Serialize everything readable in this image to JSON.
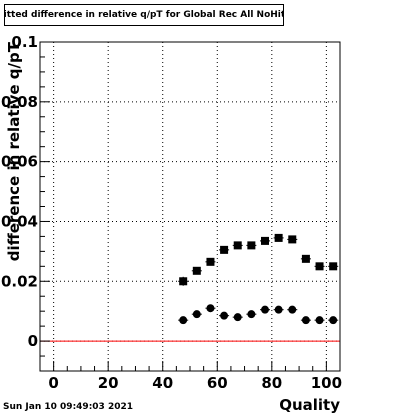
{
  "title": "Fitted difference in relative q/pT  for Global Rec All NoHits",
  "footer": "Sun Jan 10 09:49:03 2021",
  "chart_data": {
    "type": "scatter",
    "title": "Fitted difference in relative q/pT  for Global Rec All NoHits",
    "xlabel": "Quality",
    "ylabel": "difference in relative q/pT",
    "xlim": [
      -5,
      105
    ],
    "ylim": [
      -0.01,
      0.1
    ],
    "xticks": [
      0,
      20,
      40,
      60,
      80,
      100
    ],
    "yticks": [
      0,
      0.02,
      0.04,
      0.06,
      0.08,
      0.1
    ],
    "xtick_labels": [
      "0",
      "20",
      "40",
      "60",
      "80",
      "100"
    ],
    "ytick_labels": [
      "0",
      "0.02",
      "0.04",
      "0.06",
      "0.08",
      "0.1"
    ],
    "grid": true,
    "reference_line": {
      "y": 0,
      "color": "#ff0000"
    },
    "series": [
      {
        "marker": "square",
        "color": "#000000",
        "x": [
          47.5,
          52.5,
          57.5,
          62.5,
          67.5,
          72.5,
          77.5,
          82.5,
          87.5,
          92.5,
          97.5,
          102.5
        ],
        "y": [
          0.02,
          0.0235,
          0.0265,
          0.0305,
          0.032,
          0.032,
          0.0335,
          0.0345,
          0.034,
          0.0275,
          0.025,
          0.025
        ],
        "yerr": [
          0.0015,
          0.001,
          0.001,
          0.001,
          0.001,
          0.001,
          0.001,
          0.001,
          0.001,
          0.001,
          0.001,
          0.001
        ]
      },
      {
        "marker": "circle",
        "color": "#000000",
        "x": [
          47.5,
          52.5,
          57.5,
          62.5,
          67.5,
          72.5,
          77.5,
          82.5,
          87.5,
          92.5,
          97.5,
          102.5
        ],
        "y": [
          0.007,
          0.009,
          0.011,
          0.0085,
          0.008,
          0.009,
          0.0105,
          0.0105,
          0.0105,
          0.007,
          0.007,
          0.007
        ],
        "yerr": [
          0.001,
          0.001,
          0.001,
          0.001,
          0.001,
          0.001,
          0.001,
          0.001,
          0.001,
          0.001,
          0.001,
          0.001
        ]
      }
    ]
  }
}
